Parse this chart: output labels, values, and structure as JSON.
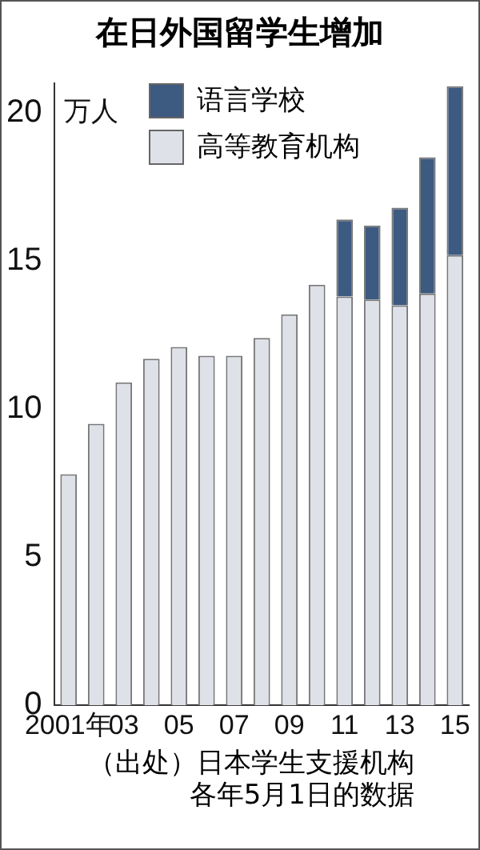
{
  "chart_data": {
    "type": "bar",
    "title": "在日外国留学生增加",
    "ylabel": "万人",
    "categories": [
      "2001年",
      null,
      "03",
      null,
      "05",
      null,
      "07",
      null,
      "09",
      null,
      "11",
      null,
      "13",
      null,
      "15"
    ],
    "stacked": true,
    "legend": "top left",
    "grid": false,
    "ylim": [
      0,
      21
    ],
    "yticks": [
      0,
      5,
      10,
      15,
      20
    ],
    "series": [
      {
        "name": "高等教育机构",
        "color": "#dfe1e8",
        "values": [
          7.8,
          9.5,
          10.9,
          11.7,
          12.1,
          11.8,
          11.8,
          12.4,
          13.2,
          14.2,
          13.8,
          13.7,
          13.5,
          13.9,
          15.2
        ]
      },
      {
        "name": "语言学校",
        "color": "#3d5a80",
        "values": [
          null,
          null,
          null,
          null,
          null,
          null,
          null,
          null,
          null,
          null,
          2.6,
          2.5,
          3.3,
          4.6,
          5.7
        ]
      }
    ],
    "annotations": [
      "（出处）日本学生支援机构",
      "各年5月1日的数据"
    ]
  }
}
